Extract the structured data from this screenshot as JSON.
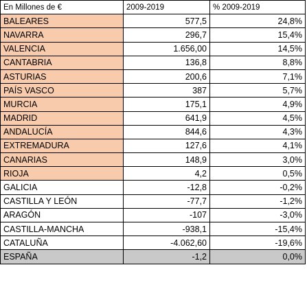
{
  "header": {
    "col1": "En Millones de €",
    "col2": "2009-2019",
    "col3": "% 2009-2019"
  },
  "colors": {
    "highlight": "#f8cbad",
    "total_row": "#c9c9c9"
  },
  "rows": [
    {
      "region": "BALEARES",
      "value": "577,5",
      "pct": "24,8%",
      "highlight": true
    },
    {
      "region": "NAVARRA",
      "value": "296,7",
      "pct": "15,4%",
      "highlight": true
    },
    {
      "region": "VALENCIA",
      "value": "1.656,00",
      "pct": "14,5%",
      "highlight": true
    },
    {
      "region": "CANTABRIA",
      "value": "136,8",
      "pct": "8,8%",
      "highlight": true
    },
    {
      "region": "ASTURIAS",
      "value": "200,6",
      "pct": "7,1%",
      "highlight": true
    },
    {
      "region": "PAÍS VASCO",
      "value": "387",
      "pct": "5,7%",
      "highlight": true
    },
    {
      "region": "MURCIA",
      "value": "175,1",
      "pct": "4,9%",
      "highlight": true
    },
    {
      "region": "MADRID",
      "value": "641,9",
      "pct": "4,5%",
      "highlight": true
    },
    {
      "region": "ANDALUCÍA",
      "value": "844,6",
      "pct": "4,3%",
      "highlight": true
    },
    {
      "region": "EXTREMADURA",
      "value": "127,6",
      "pct": "4,1%",
      "highlight": true
    },
    {
      "region": "CANARIAS",
      "value": "148,9",
      "pct": "3,0%",
      "highlight": true
    },
    {
      "region": "RIOJA",
      "value": "4,2",
      "pct": "0,5%",
      "highlight": true
    },
    {
      "region": "GALICIA",
      "value": "-12,8",
      "pct": "-0,2%",
      "highlight": false
    },
    {
      "region": "CASTILLA Y LEÓN",
      "value": "-77,7",
      "pct": "-1,2%",
      "highlight": false
    },
    {
      "region": "ARAGÓN",
      "value": "-107",
      "pct": "-3,0%",
      "highlight": false
    },
    {
      "region": "CASTILLA-MANCHA",
      "value": "-938,1",
      "pct": "-15,4%",
      "highlight": false
    },
    {
      "region": "CATALUÑA",
      "value": "-4.062,60",
      "pct": "-19,6%",
      "highlight": false
    }
  ],
  "total": {
    "region": "ESPAÑA",
    "value": "-1,2",
    "pct": "0,0%"
  }
}
